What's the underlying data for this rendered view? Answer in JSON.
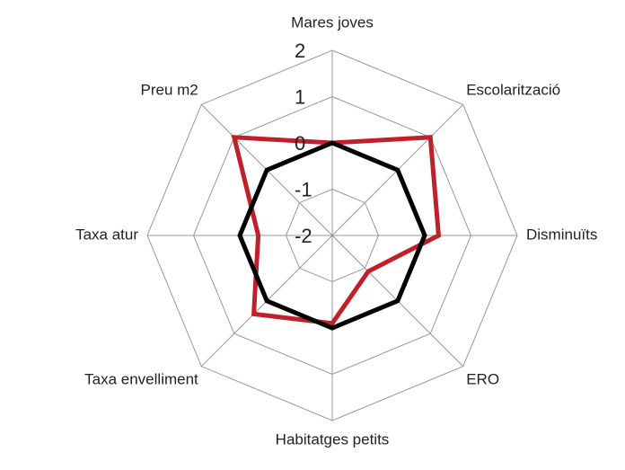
{
  "chart_data": {
    "type": "radar",
    "categories": [
      "Mares  joves",
      "Escolarització",
      "Disminuïts",
      "ERO",
      "Habitatges  petits",
      "Taxa envelliment",
      "Taxa atur",
      "Preu m2"
    ],
    "ylim": [
      -2,
      2
    ],
    "yticks": [
      -2,
      -1,
      0,
      1,
      2
    ],
    "grid": true,
    "series": [
      {
        "color": "#c0202a",
        "values": [
          0,
          1,
          0.3,
          -0.9,
          -0.1,
          0.4,
          -0.4,
          1
        ]
      },
      {
        "color": "#000000",
        "values": [
          0,
          0,
          0,
          0,
          0,
          0,
          0,
          0
        ]
      }
    ]
  }
}
